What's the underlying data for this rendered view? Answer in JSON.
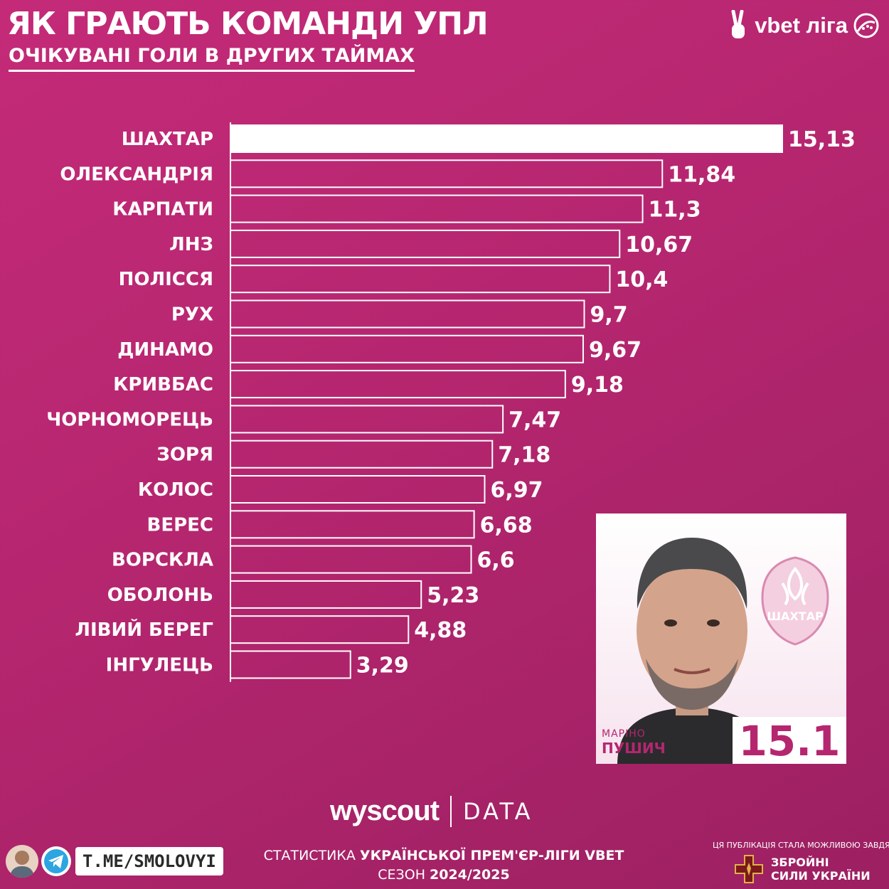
{
  "header": {
    "title": "ЯК ГРАЮТЬ КОМАНДИ УПЛ",
    "subtitle": "ОЧІКУВАНІ ГОЛИ В ДРУГИХ ТАЙМАХ",
    "logo_text": "vbet ліга"
  },
  "chart_data": {
    "type": "bar",
    "orientation": "horizontal",
    "categories": [
      "ШАХТАР",
      "ОЛЕКСАНДРІЯ",
      "КАРПАТИ",
      "ЛНЗ",
      "ПОЛІССЯ",
      "РУХ",
      "ДИНАМО",
      "КРИВБАС",
      "ЧОРНОМОРЕЦЬ",
      "ЗОРЯ",
      "КОЛОС",
      "ВЕРЕС",
      "ВОРСКЛА",
      "ОБОЛОНЬ",
      "ЛІВИЙ БЕРЕГ",
      "ІНГУЛЕЦЬ"
    ],
    "values": [
      15.13,
      11.84,
      11.3,
      10.67,
      10.4,
      9.7,
      9.67,
      9.18,
      7.47,
      7.18,
      6.97,
      6.68,
      6.6,
      5.23,
      4.88,
      3.29
    ],
    "value_labels": [
      "15,13",
      "11,84",
      "11,3",
      "10,67",
      "10,4",
      "9,7",
      "9,67",
      "9,18",
      "7,47",
      "7,18",
      "6,97",
      "6,68",
      "6,6",
      "5,23",
      "4,88",
      "3,29"
    ],
    "xlim": [
      0,
      15.13
    ],
    "grid": false,
    "highlight_index": 0,
    "colors": {
      "bar_stroke": "#ffffff",
      "highlight_fill": "#ffffff",
      "background": "#b5266f"
    }
  },
  "card": {
    "first_name": "МАРІНО",
    "last_name": "ПУШИЧ",
    "rating": "15.1",
    "crest": "shakhtar-crest-icon",
    "crest_text": "ШАХТАР"
  },
  "source": {
    "brand": "wyscout",
    "data": "DATA"
  },
  "footer": {
    "telegram": "T.ME/SMOLOVYI",
    "stats_prefix": "СТАТИСТИКА ",
    "stats_bold": "УКРАЇНСЬКОЇ ПРЕМ'ЄР-ЛІГИ VBET",
    "season_prefix": "СЕЗОН ",
    "season_bold": "2024/2025",
    "sponsor_note": "ЦЯ ПУБЛІКАЦІЯ СТАЛА МОЖЛИВОЮ ЗАВДЯКИ:",
    "zsu_line1": "ЗБРОЙНІ",
    "zsu_line2": "СИЛИ УКРАЇНИ"
  }
}
